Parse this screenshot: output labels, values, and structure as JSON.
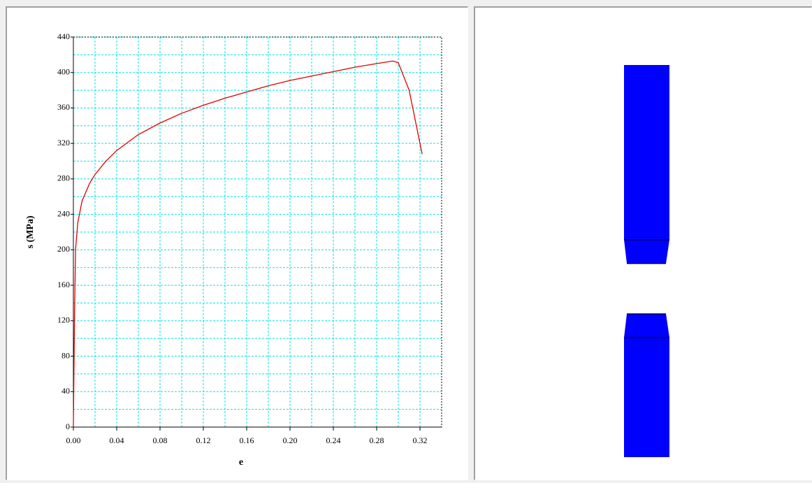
{
  "chart_data": {
    "type": "line",
    "x_label": "e",
    "y_label": "s (MPa)",
    "xlim": [
      0,
      0.34
    ],
    "ylim": [
      0,
      440
    ],
    "xticks": [
      {
        "value": 0,
        "label": "0.00"
      },
      {
        "value": 0.04,
        "label": "0.04"
      },
      {
        "value": 0.08,
        "label": "0.08"
      },
      {
        "value": 0.12,
        "label": "0.12"
      },
      {
        "value": 0.16,
        "label": "0.16"
      },
      {
        "value": 0.2,
        "label": "0.20"
      },
      {
        "value": 0.24,
        "label": "0.24"
      },
      {
        "value": 0.28,
        "label": "0.28"
      },
      {
        "value": 0.32,
        "label": "0.32"
      }
    ],
    "yticks": [
      0,
      40,
      80,
      120,
      160,
      200,
      240,
      280,
      320,
      360,
      400,
      440
    ],
    "x_minor_ticks": [
      0.02,
      0.06,
      0.1,
      0.14,
      0.18,
      0.22,
      0.26,
      0.3
    ],
    "y_minor_ticks": [
      20,
      60,
      100,
      140,
      180,
      220,
      260,
      300,
      340,
      380,
      420
    ],
    "grid": true,
    "grid_color": "#00e5e5",
    "series": [
      {
        "color": "#e00000",
        "x": [
          0,
          0.001,
          0.002,
          0.004,
          0.008,
          0.015,
          0.02,
          0.03,
          0.04,
          0.06,
          0.08,
          0.1,
          0.12,
          0.14,
          0.16,
          0.18,
          0.2,
          0.22,
          0.24,
          0.26,
          0.28,
          0.295,
          0.3,
          0.31,
          0.315,
          0.322
        ],
        "values": [
          0,
          120,
          200,
          230,
          255,
          275,
          285,
          300,
          312,
          330,
          343,
          354,
          363,
          371,
          378,
          385,
          391,
          396,
          401,
          406,
          410,
          413,
          411,
          380,
          350,
          308
        ]
      }
    ]
  }
}
